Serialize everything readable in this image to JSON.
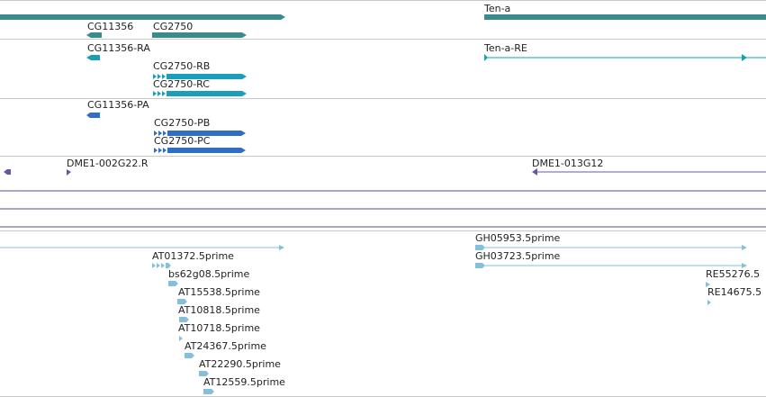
{
  "colors": {
    "gene": "#3a8b8c",
    "transcript": "#1a9fb8",
    "protein": "#2e6ec4",
    "clone": "#6b54a3",
    "est": "#86bfdc",
    "divider": "#c8c8c8",
    "clone_line": "#5a4a96"
  },
  "genes": {
    "left_gene_label": "",
    "cg11356": "CG11356",
    "cg2750": "CG2750",
    "ten_a": "Ten-a"
  },
  "transcripts": {
    "cg11356_ra": "CG11356-RA",
    "cg2750_rb": "CG2750-RB",
    "cg2750_rc": "CG2750-RC",
    "ten_a_re": "Ten-a-RE"
  },
  "proteins": {
    "cg11356_pa": "CG11356-PA",
    "cg2750_pb": "CG2750-PB",
    "cg2750_pc": "CG2750-PC"
  },
  "clones": {
    "dme1_002g22": "DME1-002G22.R",
    "dme1_013g12": "DME1-013G12"
  },
  "ests": [
    "AT01372.5prime",
    "bs62g08.5prime",
    "AT15538.5prime",
    "AT10818.5prime",
    "AT10718.5prime",
    "AT24367.5prime",
    "AT22290.5prime",
    "AT12559.5prime",
    "GH05953.5prime",
    "GH03723.5prime",
    "RE55276.5",
    "RE14675.5"
  ]
}
